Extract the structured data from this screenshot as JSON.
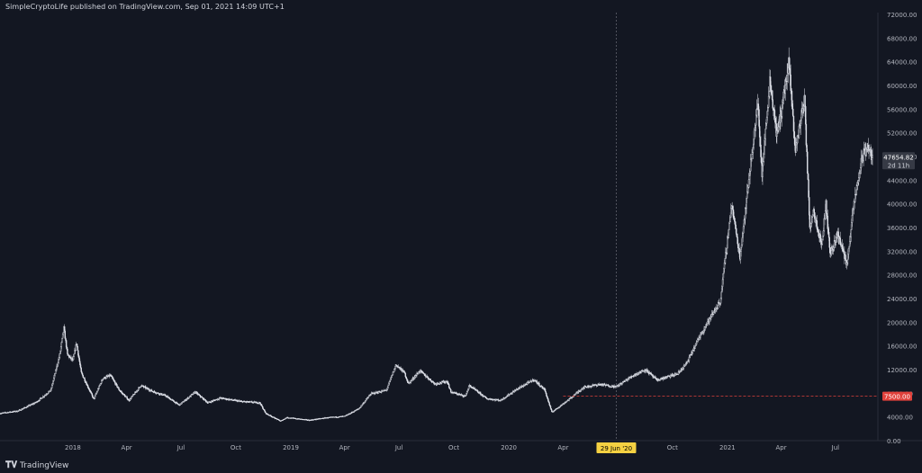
{
  "header": {
    "published_text": "SimpleCryptoLife published on TradingView.com, Sep 01, 2021 14:09 UTC+1"
  },
  "footer": {
    "logo_glyph": "𝐓𝐕",
    "brand": "TradingView"
  },
  "colors": {
    "background": "#131722",
    "candle": "#e0e3eb",
    "axis_text": "#b2b5be",
    "crosshair": "#787b86",
    "level_line": "#e0413b",
    "date_badge": "#f5d142",
    "price_badge": "#363a45"
  },
  "chart_data": {
    "type": "candlestick",
    "title": "",
    "xlabel": "",
    "ylabel": "",
    "ylim": [
      0,
      72000
    ],
    "y_ticks": [
      "0.00",
      "4000.00",
      "8000.00",
      "12000.00",
      "16000.00",
      "20000.00",
      "24000.00",
      "28000.00",
      "32000.00",
      "36000.00",
      "40000.00",
      "44000.00",
      "48000.00",
      "52000.00",
      "56000.00",
      "60000.00",
      "64000.00",
      "68000.00",
      "72000.00"
    ],
    "x_ticks": [
      "2018",
      "Apr",
      "Jul",
      "Oct",
      "2019",
      "Apr",
      "Jul",
      "Oct",
      "2020",
      "Apr",
      "Jul",
      "Oct",
      "2021",
      "Apr",
      "Jul"
    ],
    "x_tick_dates": [
      "2018-01-01",
      "2018-04-01",
      "2018-07-01",
      "2018-10-01",
      "2019-01-01",
      "2019-04-01",
      "2019-07-01",
      "2019-10-01",
      "2020-01-01",
      "2020-04-01",
      "2020-07-01",
      "2020-10-01",
      "2021-01-01",
      "2021-04-01",
      "2021-07-01"
    ],
    "x_range": [
      "2017-09-01",
      "2021-09-10"
    ],
    "crosshair": {
      "date": "2020-06-29",
      "label": "29 Jun '20"
    },
    "level_line": {
      "value": 7500,
      "label": "7500.00",
      "start_date": "2020-04-01"
    },
    "last_price": {
      "value": 47654.82,
      "label": "47654.82",
      "countdown": "2d 11h"
    },
    "grid": false,
    "price_path": [
      [
        "2017-09-01",
        4600
      ],
      [
        "2017-10-01",
        5000
      ],
      [
        "2017-11-01",
        6500
      ],
      [
        "2017-11-25",
        8500
      ],
      [
        "2017-12-10",
        14500
      ],
      [
        "2017-12-17",
        19000
      ],
      [
        "2017-12-23",
        14500
      ],
      [
        "2018-01-01",
        13500
      ],
      [
        "2018-01-07",
        16500
      ],
      [
        "2018-01-15",
        11500
      ],
      [
        "2018-02-05",
        7000
      ],
      [
        "2018-02-20",
        10500
      ],
      [
        "2018-03-05",
        11000
      ],
      [
        "2018-03-20",
        8500
      ],
      [
        "2018-04-05",
        6800
      ],
      [
        "2018-04-25",
        9300
      ],
      [
        "2018-05-15",
        8300
      ],
      [
        "2018-06-05",
        7600
      ],
      [
        "2018-06-28",
        6000
      ],
      [
        "2018-07-25",
        8200
      ],
      [
        "2018-08-15",
        6400
      ],
      [
        "2018-09-05",
        7200
      ],
      [
        "2018-10-10",
        6600
      ],
      [
        "2018-11-10",
        6400
      ],
      [
        "2018-11-20",
        4600
      ],
      [
        "2018-12-15",
        3300
      ],
      [
        "2018-12-25",
        3900
      ],
      [
        "2019-02-01",
        3450
      ],
      [
        "2019-03-01",
        3850
      ],
      [
        "2019-04-01",
        4100
      ],
      [
        "2019-04-25",
        5400
      ],
      [
        "2019-05-15",
        7900
      ],
      [
        "2019-06-10",
        8500
      ],
      [
        "2019-06-26",
        12800
      ],
      [
        "2019-07-10",
        11500
      ],
      [
        "2019-07-17",
        9600
      ],
      [
        "2019-08-05",
        11800
      ],
      [
        "2019-08-30",
        9600
      ],
      [
        "2019-09-20",
        10000
      ],
      [
        "2019-09-26",
        8200
      ],
      [
        "2019-10-20",
        7500
      ],
      [
        "2019-10-27",
        9300
      ],
      [
        "2019-11-25",
        7100
      ],
      [
        "2019-12-18",
        6800
      ],
      [
        "2020-01-15",
        8700
      ],
      [
        "2020-02-12",
        10300
      ],
      [
        "2020-03-01",
        8600
      ],
      [
        "2020-03-13",
        4800
      ],
      [
        "2020-04-10",
        6900
      ],
      [
        "2020-05-05",
        9000
      ],
      [
        "2020-06-01",
        9500
      ],
      [
        "2020-06-29",
        9100
      ],
      [
        "2020-07-27",
        11000
      ],
      [
        "2020-08-17",
        12000
      ],
      [
        "2020-09-05",
        10200
      ],
      [
        "2020-10-10",
        11300
      ],
      [
        "2020-10-25",
        13100
      ],
      [
        "2020-11-20",
        18500
      ],
      [
        "2020-12-20",
        23500
      ],
      [
        "2021-01-08",
        40000
      ],
      [
        "2021-01-22",
        31000
      ],
      [
        "2021-02-08",
        46000
      ],
      [
        "2021-02-21",
        57000
      ],
      [
        "2021-02-28",
        45000
      ],
      [
        "2021-03-13",
        61000
      ],
      [
        "2021-03-25",
        51500
      ],
      [
        "2021-04-14",
        63500
      ],
      [
        "2021-04-25",
        49000
      ],
      [
        "2021-05-10",
        58000
      ],
      [
        "2021-05-19",
        36000
      ],
      [
        "2021-05-25",
        39000
      ],
      [
        "2021-06-08",
        33000
      ],
      [
        "2021-06-15",
        40000
      ],
      [
        "2021-06-22",
        31500
      ],
      [
        "2021-07-05",
        35000
      ],
      [
        "2021-07-20",
        29800
      ],
      [
        "2021-08-01",
        40000
      ],
      [
        "2021-08-14",
        47500
      ],
      [
        "2021-08-23",
        49800
      ],
      [
        "2021-09-01",
        47654.82
      ]
    ]
  }
}
